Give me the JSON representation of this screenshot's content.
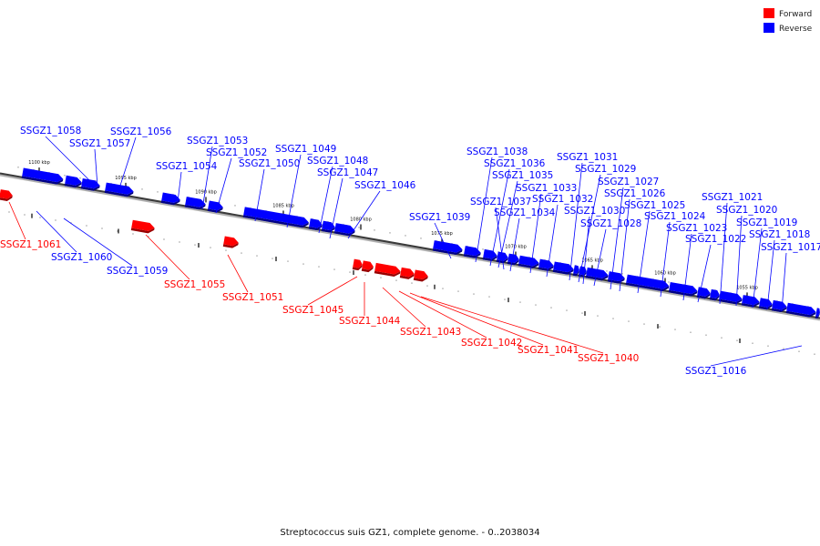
{
  "legend": {
    "forward_label": "Forward",
    "reverse_label": "Reverse",
    "forward_color": "#ff0000",
    "reverse_color": "#0000ff"
  },
  "caption": "Streptococcus suis GZ1, complete genome. - 0..2038034",
  "scale_labels": [
    "1100 kbp",
    "1095 kbp",
    "1090 kbp",
    "1085 kbp",
    "1080 kbp",
    "1075 kbp",
    "1070 kbp",
    "1065 kbp",
    "1060 kbp",
    "1055 kbp"
  ],
  "genes": [
    {
      "label": "SSGZ1_1061",
      "strand": "forward"
    },
    {
      "label": "SSGZ1_1060",
      "strand": "reverse"
    },
    {
      "label": "SSGZ1_1059",
      "strand": "reverse"
    },
    {
      "label": "SSGZ1_1058",
      "strand": "reverse"
    },
    {
      "label": "SSGZ1_1057",
      "strand": "reverse"
    },
    {
      "label": "SSGZ1_1056",
      "strand": "reverse"
    },
    {
      "label": "SSGZ1_1055",
      "strand": "forward"
    },
    {
      "label": "SSGZ1_1054",
      "strand": "reverse"
    },
    {
      "label": "SSGZ1_1053",
      "strand": "reverse"
    },
    {
      "label": "SSGZ1_1052",
      "strand": "reverse"
    },
    {
      "label": "SSGZ1_1051",
      "strand": "forward"
    },
    {
      "label": "SSGZ1_1050",
      "strand": "reverse"
    },
    {
      "label": "SSGZ1_1049",
      "strand": "reverse"
    },
    {
      "label": "SSGZ1_1048",
      "strand": "reverse"
    },
    {
      "label": "SSGZ1_1047",
      "strand": "reverse"
    },
    {
      "label": "SSGZ1_1046",
      "strand": "reverse"
    },
    {
      "label": "SSGZ1_1045",
      "strand": "forward"
    },
    {
      "label": "SSGZ1_1044",
      "strand": "forward"
    },
    {
      "label": "SSGZ1_1043",
      "strand": "forward"
    },
    {
      "label": "SSGZ1_1042",
      "strand": "forward"
    },
    {
      "label": "SSGZ1_1041",
      "strand": "forward"
    },
    {
      "label": "SSGZ1_1040",
      "strand": "forward"
    },
    {
      "label": "SSGZ1_1039",
      "strand": "reverse"
    },
    {
      "label": "SSGZ1_1038",
      "strand": "reverse"
    },
    {
      "label": "SSGZ1_1037",
      "strand": "reverse"
    },
    {
      "label": "SSGZ1_1036",
      "strand": "reverse"
    },
    {
      "label": "SSGZ1_1035",
      "strand": "reverse"
    },
    {
      "label": "SSGZ1_1034",
      "strand": "reverse"
    },
    {
      "label": "SSGZ1_1033",
      "strand": "reverse"
    },
    {
      "label": "SSGZ1_1032",
      "strand": "reverse"
    },
    {
      "label": "SSGZ1_1031",
      "strand": "reverse"
    },
    {
      "label": "SSGZ1_1030",
      "strand": "reverse"
    },
    {
      "label": "SSGZ1_1029",
      "strand": "reverse"
    },
    {
      "label": "SSGZ1_1028",
      "strand": "reverse"
    },
    {
      "label": "SSGZ1_1027",
      "strand": "reverse"
    },
    {
      "label": "SSGZ1_1026",
      "strand": "reverse"
    },
    {
      "label": "SSGZ1_1025",
      "strand": "reverse"
    },
    {
      "label": "SSGZ1_1024",
      "strand": "reverse"
    },
    {
      "label": "SSGZ1_1023",
      "strand": "reverse"
    },
    {
      "label": "SSGZ1_1022",
      "strand": "reverse"
    },
    {
      "label": "SSGZ1_1021",
      "strand": "reverse"
    },
    {
      "label": "SSGZ1_1020",
      "strand": "reverse"
    },
    {
      "label": "SSGZ1_1019",
      "strand": "reverse"
    },
    {
      "label": "SSGZ1_1018",
      "strand": "reverse"
    },
    {
      "label": "SSGZ1_1017",
      "strand": "reverse"
    },
    {
      "label": "SSGZ1_1016",
      "strand": "reverse"
    }
  ]
}
